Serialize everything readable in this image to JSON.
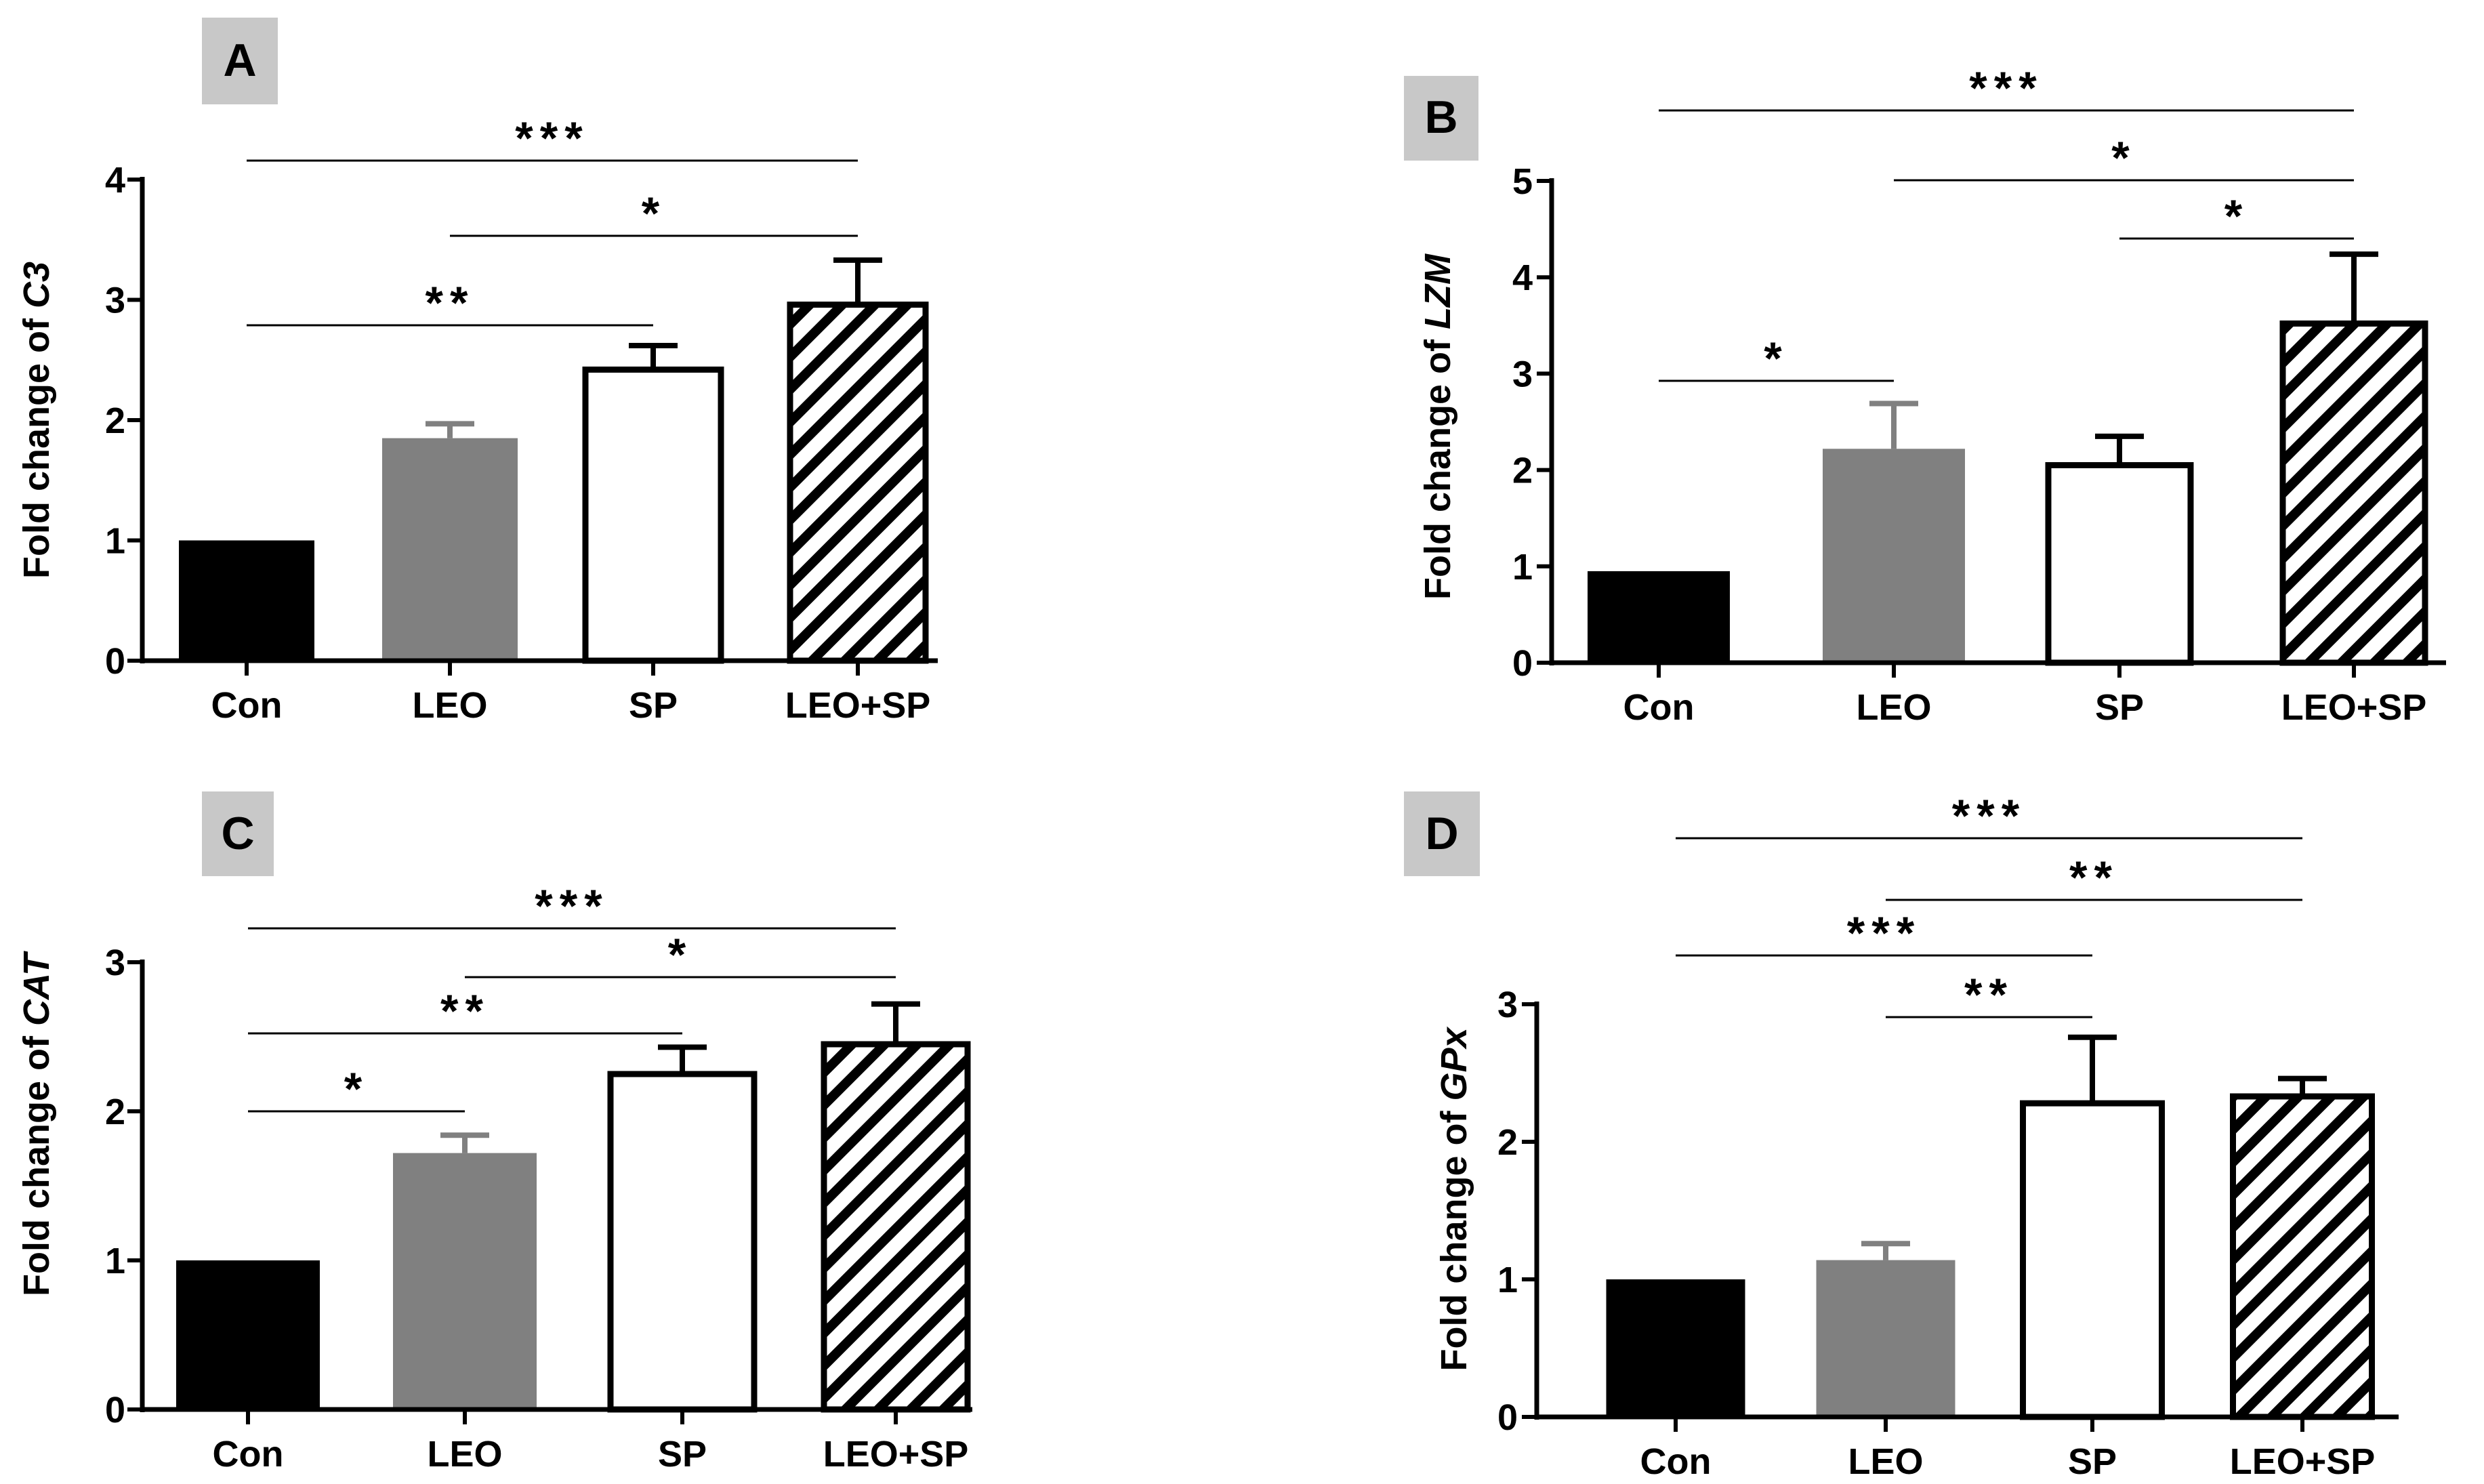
{
  "colors": {
    "con": "#000000",
    "leo": "#808080",
    "sp": "#ffffff",
    "leo_sp_hatch": "#000000",
    "panel_label_bg": "#c8c8c8"
  },
  "chart_data": [
    {
      "panel": "A",
      "type": "bar",
      "ylabel_prefix": "Fold change of ",
      "ylabel_gene": "C3",
      "categories": [
        "Con",
        "LEO",
        "SP",
        "LEO+SP"
      ],
      "values": [
        1.0,
        1.85,
        2.42,
        2.96
      ],
      "errors": [
        0,
        0.12,
        0.2,
        0.37
      ],
      "ylim": [
        0,
        4
      ],
      "yticks": [
        "0",
        "1",
        "2",
        "3",
        "4"
      ],
      "significance": [
        {
          "from": 0,
          "to": 2,
          "label": "**"
        },
        {
          "from": 1,
          "to": 3,
          "label": "*"
        },
        {
          "from": 0,
          "to": 3,
          "label": "***"
        }
      ]
    },
    {
      "panel": "B",
      "type": "bar",
      "ylabel_prefix": "Fold change of ",
      "ylabel_gene": "LZM",
      "categories": [
        "Con",
        "LEO",
        "SP",
        "LEO+SP"
      ],
      "values": [
        0.95,
        2.22,
        2.05,
        3.52
      ],
      "errors": [
        0,
        0.47,
        0.3,
        0.72
      ],
      "ylim": [
        0,
        5
      ],
      "yticks": [
        "0",
        "1",
        "2",
        "3",
        "4",
        "5"
      ],
      "significance": [
        {
          "from": 0,
          "to": 1,
          "label": "*"
        },
        {
          "from": 2,
          "to": 3,
          "label": "*"
        },
        {
          "from": 1,
          "to": 3,
          "label": "*"
        },
        {
          "from": 0,
          "to": 3,
          "label": "***"
        }
      ]
    },
    {
      "panel": "C",
      "type": "bar",
      "ylabel_prefix": "Fold change of ",
      "ylabel_gene": "CAT",
      "categories": [
        "Con",
        "LEO",
        "SP",
        "LEO+SP"
      ],
      "values": [
        1.0,
        1.72,
        2.25,
        2.45
      ],
      "errors": [
        0,
        0.12,
        0.18,
        0.27
      ],
      "ylim": [
        0,
        3
      ],
      "yticks": [
        "0",
        "1",
        "2",
        "3"
      ],
      "significance": [
        {
          "from": 0,
          "to": 1,
          "label": "*"
        },
        {
          "from": 0,
          "to": 2,
          "label": "**"
        },
        {
          "from": 1,
          "to": 3,
          "label": "*"
        },
        {
          "from": 0,
          "to": 3,
          "label": "***"
        }
      ]
    },
    {
      "panel": "D",
      "type": "bar",
      "ylabel_prefix": "Fold change of ",
      "ylabel_gene": "GPx",
      "categories": [
        "Con",
        "LEO",
        "SP",
        "LEO+SP"
      ],
      "values": [
        1.0,
        1.14,
        2.28,
        2.33
      ],
      "errors": [
        0,
        0.12,
        0.48,
        0.13
      ],
      "ylim": [
        0,
        3
      ],
      "yticks": [
        "0",
        "1",
        "2",
        "3"
      ],
      "significance": [
        {
          "from": 1,
          "to": 2,
          "label": "**"
        },
        {
          "from": 0,
          "to": 2,
          "label": "***"
        },
        {
          "from": 1,
          "to": 3,
          "label": "**"
        },
        {
          "from": 0,
          "to": 3,
          "label": "***"
        }
      ]
    }
  ]
}
